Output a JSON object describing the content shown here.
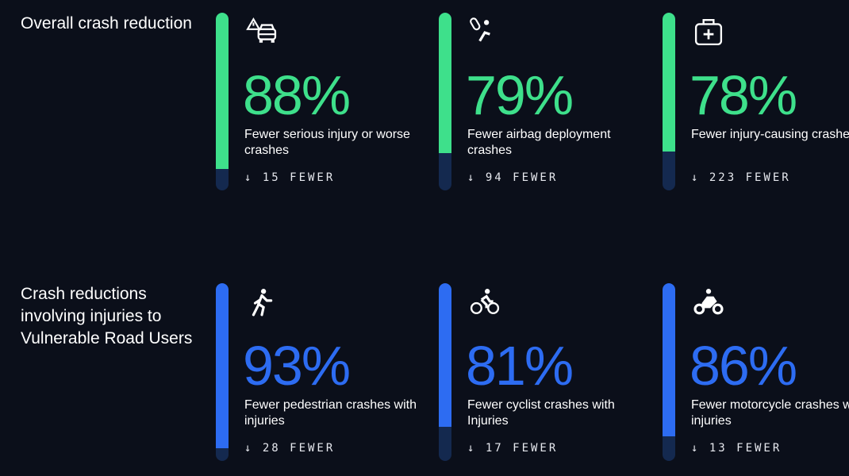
{
  "colors": {
    "background": "#0b0f1a",
    "green": "#3ee08b",
    "blue": "#2d6cf2",
    "track": "#14294f"
  },
  "sections": [
    {
      "title": "Overall crash reduction",
      "accent": "#3ee08b",
      "cards": [
        {
          "icon": "car-warning-icon",
          "percent": 88,
          "percent_label": "88%",
          "description": "Fewer serious injury or worse crashes",
          "fewer": "↓ 15 FEWER"
        },
        {
          "icon": "airbag-icon",
          "percent": 79,
          "percent_label": "79%",
          "description": "Fewer airbag deployment crashes",
          "fewer": "↓ 94 FEWER"
        },
        {
          "icon": "medical-kit-icon",
          "percent": 78,
          "percent_label": "78%",
          "description": "Fewer injury-causing crashes",
          "fewer": "↓ 223 FEWER"
        }
      ]
    },
    {
      "title": "Crash reductions involving injuries to Vulnerable Road Users",
      "accent": "#2d6cf2",
      "cards": [
        {
          "icon": "pedestrian-icon",
          "percent": 93,
          "percent_label": "93%",
          "description": "Fewer pedestrian crashes with injuries",
          "fewer": "↓ 28 FEWER"
        },
        {
          "icon": "cyclist-icon",
          "percent": 81,
          "percent_label": "81%",
          "description": "Fewer cyclist crashes with Injuries",
          "fewer": "↓ 17 FEWER"
        },
        {
          "icon": "motorcycle-icon",
          "percent": 86,
          "percent_label": "86%",
          "description": "Fewer motorcycle crashes with injuries",
          "fewer": "↓ 13 FEWER"
        }
      ]
    }
  ]
}
